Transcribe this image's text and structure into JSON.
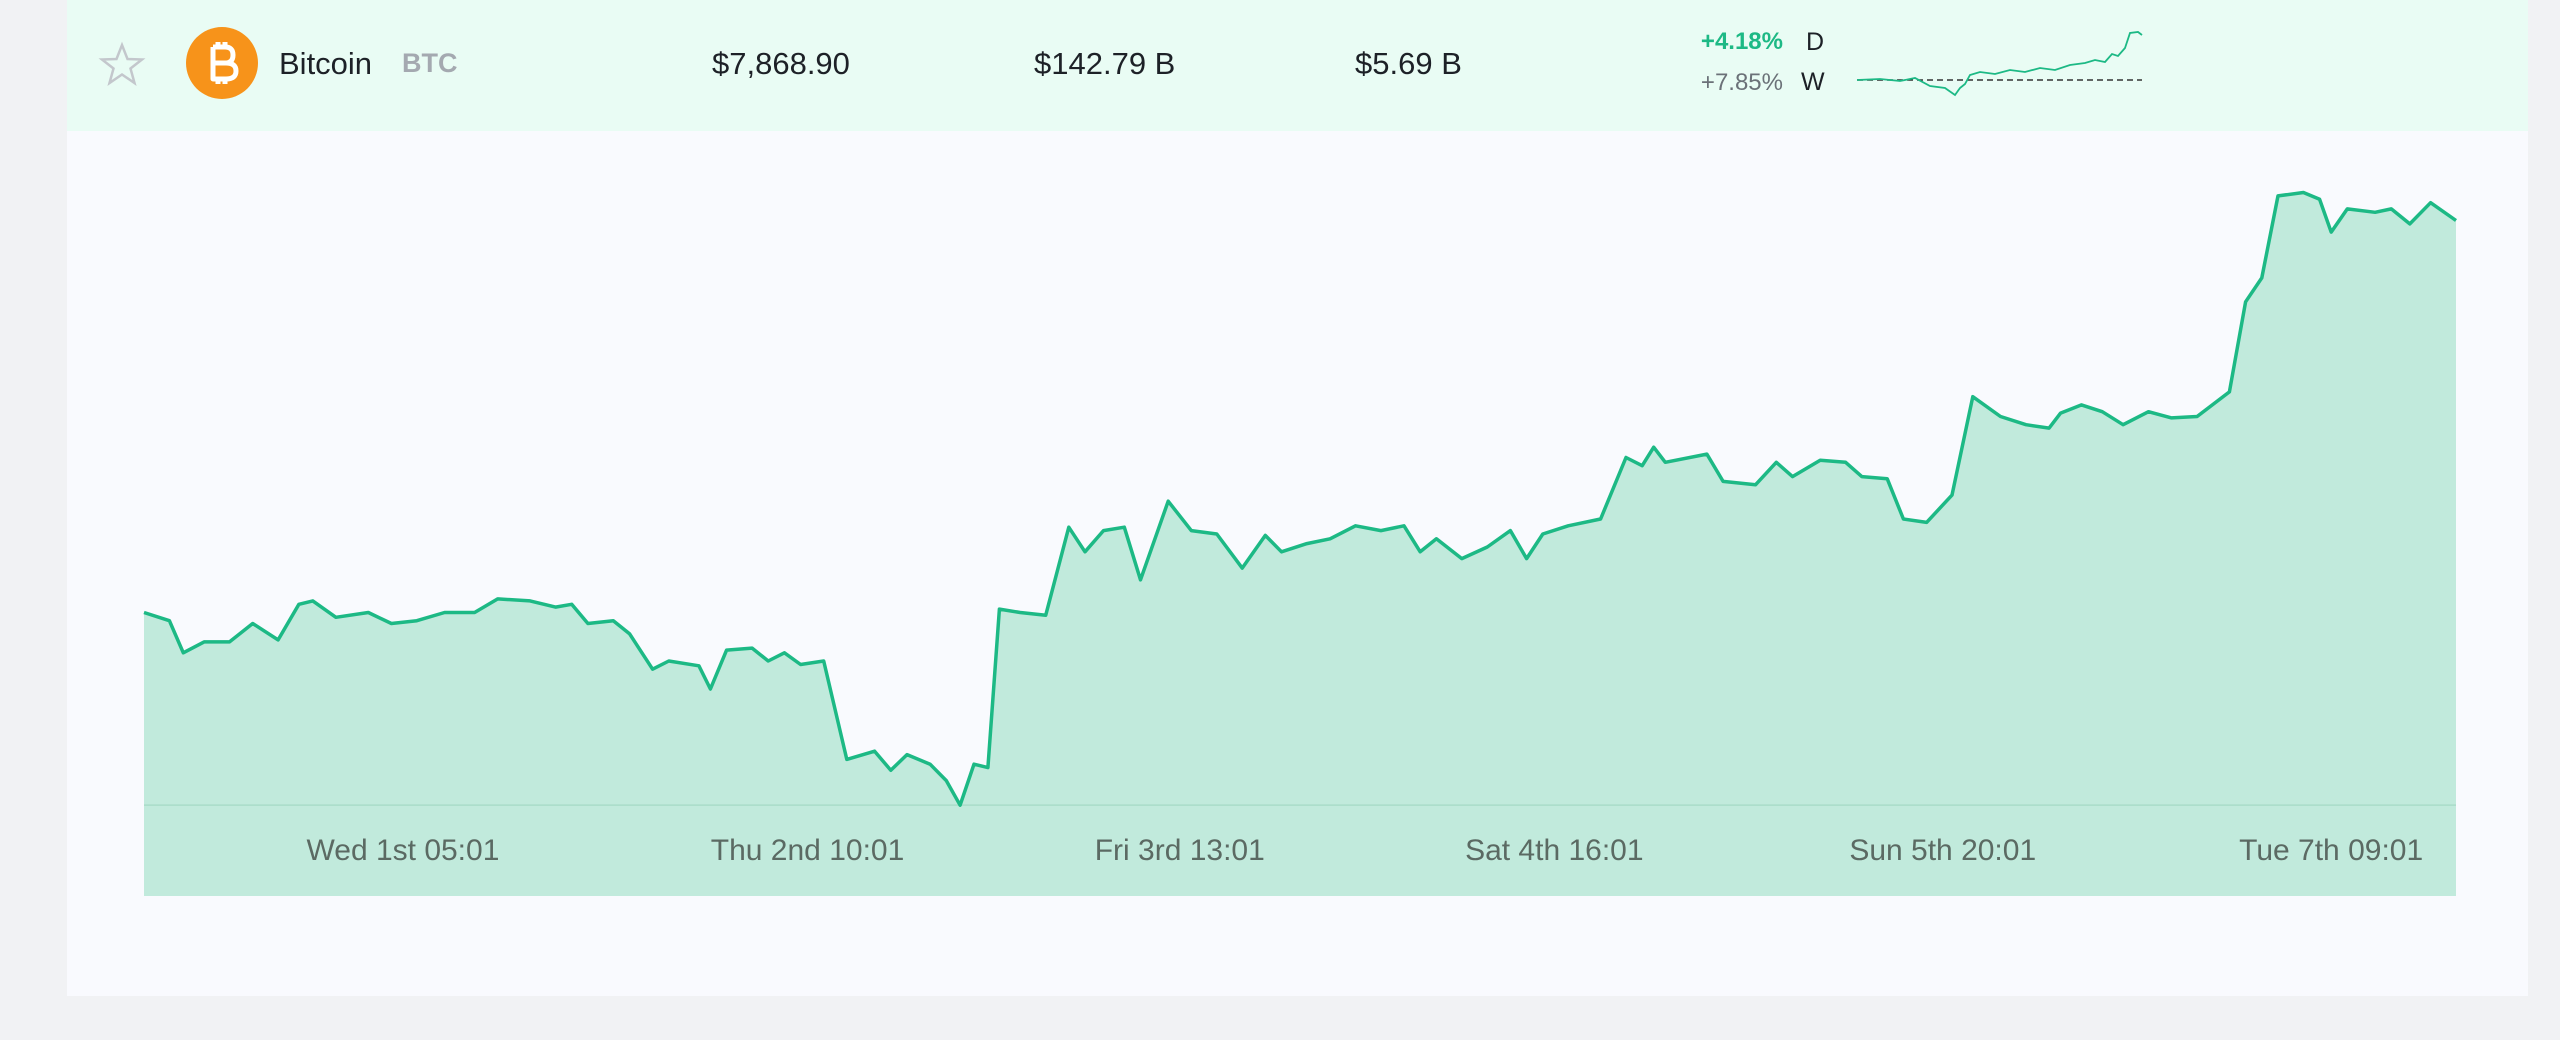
{
  "row": {
    "name": "Bitcoin",
    "symbol": "BTC",
    "price": "$7,868.90",
    "market_cap": "$142.79 B",
    "volume": "$5.69 B",
    "change_day": "+4.18%",
    "day_label": "D",
    "change_week": "+7.85%",
    "week_label": "W"
  },
  "chart_data": {
    "type": "area",
    "color": "#1db985",
    "fill": "#c1eadc",
    "x": [
      0,
      1.1,
      1.7,
      2.6,
      3.7,
      4.7,
      5.8,
      6.7,
      7.3,
      8.3,
      9.7,
      10.7,
      11.8,
      13.0,
      14.3,
      15.3,
      16.7,
      17.8,
      18.5,
      19.2,
      20.3,
      21.0,
      22.0,
      22.7,
      24.0,
      24.5,
      25.2,
      26.3,
      27.0,
      27.7,
      28.4,
      29.4,
      30.4,
      31.6,
      32.3,
      33.0,
      34.0,
      34.7,
      35.3,
      35.9,
      36.5,
      37.0,
      37.9,
      39.0,
      40.0,
      40.7,
      41.5,
      42.4,
      43.1,
      44.3,
      45.3,
      46.4,
      47.5,
      48.5,
      49.2,
      50.3,
      51.3,
      52.4,
      53.5,
      54.5,
      55.2,
      55.9,
      57.0,
      58.1,
      59.1,
      59.8,
      60.5,
      61.6,
      63.0,
      64.1,
      64.8,
      65.3,
      65.8,
      67.6,
      68.3,
      69.7,
      70.6,
      71.3,
      72.5,
      73.6,
      74.3,
      75.4,
      76.1,
      77.1,
      78.2,
      79.1,
      80.3,
      81.4,
      82.4,
      82.9,
      83.8,
      84.7,
      85.6,
      86.7,
      87.7,
      88.8,
      90.2,
      90.9,
      91.6,
      92.3,
      93.4,
      94.1,
      94.6,
      95.3,
      96.5,
      97.2,
      98.0,
      98.9,
      100
    ],
    "values": [
      7295,
      7283,
      7236,
      7252,
      7252,
      7279,
      7255,
      7307,
      7312,
      7288,
      7295,
      7279,
      7283,
      7295,
      7295,
      7315,
      7312,
      7303,
      7307,
      7279,
      7283,
      7264,
      7212,
      7224,
      7217,
      7183,
      7240,
      7243,
      7224,
      7236,
      7219,
      7224,
      7080,
      7092,
      7064,
      7087,
      7073,
      7049,
      7013,
      7073,
      7068,
      7300,
      7295,
      7291,
      7420,
      7384,
      7415,
      7420,
      7343,
      7458,
      7415,
      7410,
      7360,
      7408,
      7384,
      7396,
      7403,
      7422,
      7415,
      7422,
      7384,
      7403,
      7374,
      7391,
      7415,
      7374,
      7410,
      7422,
      7432,
      7522,
      7510,
      7537,
      7515,
      7527,
      7487,
      7482,
      7515,
      7494,
      7518,
      7515,
      7494,
      7491,
      7432,
      7427,
      7467,
      7611,
      7582,
      7570,
      7565,
      7587,
      7599,
      7589,
      7570,
      7589,
      7580,
      7582,
      7618,
      7750,
      7785,
      7905,
      7910,
      7900,
      7852,
      7886,
      7881,
      7886,
      7864,
      7895,
      7869
    ],
    "xlim": [
      0,
      100
    ],
    "ylim": [
      6880,
      8000
    ],
    "xticks": [
      {
        "value": 11.2,
        "label": "Wed 1st 05:01"
      },
      {
        "value": 28.7,
        "label": "Thu 2nd 10:01"
      },
      {
        "value": 44.8,
        "label": "Fri 3rd 13:01"
      },
      {
        "value": 61.0,
        "label": "Sat 4th 16:01"
      },
      {
        "value": 77.8,
        "label": "Sun 5th 20:01"
      },
      {
        "value": 94.6,
        "label": "Tue 7th 09:01"
      }
    ]
  }
}
